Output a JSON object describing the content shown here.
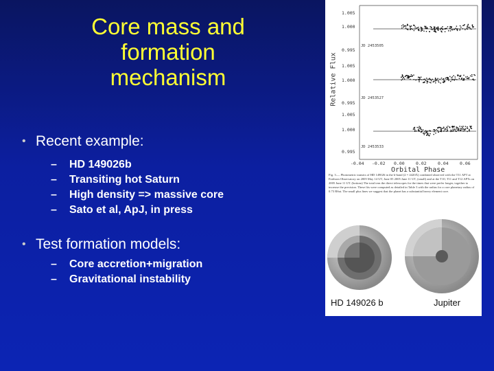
{
  "slide": {
    "title": "Core mass and formation mechanism",
    "bullets": [
      {
        "label": "Recent example:",
        "sub": [
          "HD 149026b",
          "Transiting hot Saturn",
          "High density => massive core",
          "Sato et al, ApJ, in press"
        ]
      },
      {
        "label": "Test formation models:",
        "sub": [
          "Core accretion+migration",
          "Gravitational instability"
        ]
      }
    ],
    "bullet_marker": "•",
    "sub_marker": "–"
  },
  "figure": {
    "ylabel": "Relative Flux",
    "xlabel": "Orbital Phase",
    "panels": [
      {
        "ticks": [
          "1.005",
          "1.000",
          "0.995"
        ],
        "jd": "JD 2453505"
      },
      {
        "ticks": [
          "1.005",
          "1.000",
          "0.995"
        ],
        "jd": "JD 2453527"
      },
      {
        "ticks": [
          "1.005",
          "1.000",
          "0.995"
        ],
        "jd": "JD 2453533"
      }
    ],
    "xticks": [
      "-0.04",
      "-0.02",
      "0.00",
      "0.02",
      "0.04",
      "0.06"
    ],
    "caption": "Fig. 3.— Photometric transits of HD 149026 in the b-band (2 = 4420Å) combined observed with the T11 APT at Fairborn Observatory on 2005 May 14 UT, June 05 2005 June 11 UT, (small) and at the T10, T11 and T12 APTs on 2005 June 11 UT. (bottom) The total tern the direct telescopes for the times that were prefer longer, together to increase the precision. These fits were computed as detailed in Table 3 with the radius for a core planetary radius of 0.73 RSat. The small plus lines we suggest that the planet has a substantial heavy element core.",
    "planet_labels": [
      "HD 149026 b",
      "Jupiter"
    ]
  },
  "colors": {
    "title": "#ffff33",
    "text": "#ffffff",
    "background": "#0c1fa0"
  }
}
